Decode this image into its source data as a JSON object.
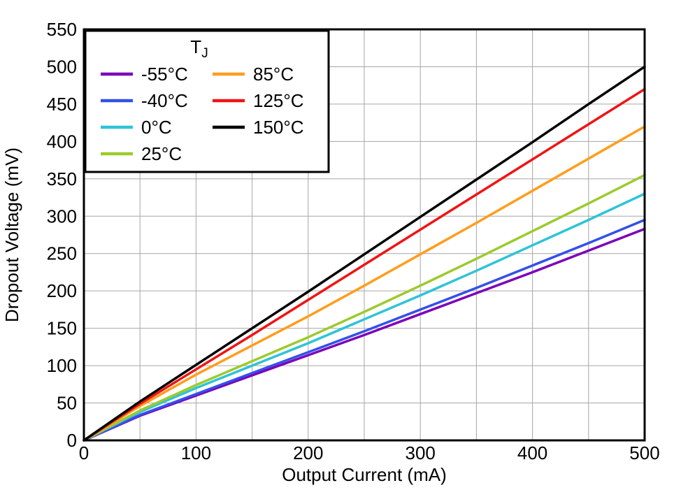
{
  "chart_data": {
    "type": "line",
    "title": "",
    "xlabel": "Output Current (mA)",
    "ylabel": "Dropout Voltage (mV)",
    "xlim": [
      0,
      500
    ],
    "ylim": [
      0,
      550
    ],
    "x_tick_step": 100,
    "y_tick_step": 50,
    "grid_step_x": 50,
    "grid_step_y": 50,
    "grid_on": true,
    "grid_color": "#a6a6a6",
    "border_color": "#000000",
    "x": [
      0,
      50,
      100,
      150,
      200,
      250,
      300,
      350,
      400,
      450,
      500
    ],
    "series": [
      {
        "name": "-55°C",
        "color": "#7c00b8",
        "values": [
          0,
          33,
          60,
          87,
          114,
          141,
          169,
          197,
          225,
          254,
          283
        ]
      },
      {
        "name": "-40°C",
        "color": "#3350e8",
        "values": [
          0,
          34,
          62,
          90,
          118,
          146,
          175,
          204,
          234,
          264,
          295
        ]
      },
      {
        "name": "0°C",
        "color": "#2ec4d6",
        "values": [
          0,
          38,
          70,
          100,
          130,
          162,
          194,
          227,
          261,
          295,
          330
        ]
      },
      {
        "name": "25°C",
        "color": "#9bcb2d",
        "values": [
          0,
          40,
          74,
          106,
          138,
          172,
          207,
          243,
          280,
          317,
          355
        ]
      },
      {
        "name": "85°C",
        "color": "#ff9d1c",
        "values": [
          0,
          46,
          88,
          127,
          166,
          207,
          249,
          291,
          334,
          377,
          420
        ]
      },
      {
        "name": "125°C",
        "color": "#f01414",
        "values": [
          0,
          49,
          95,
          141,
          188,
          235,
          282,
          329,
          376,
          423,
          470
        ]
      },
      {
        "name": "150°C",
        "color": "#000000",
        "values": [
          0,
          52,
          101,
          150,
          199,
          249,
          299,
          349,
          399,
          450,
          500
        ]
      }
    ],
    "legend": {
      "position": "top-left",
      "title_main": "T",
      "title_sub": "J",
      "columns": [
        [
          "-55°C",
          "-40°C",
          "0°C",
          "25°C"
        ],
        [
          "85°C",
          "125°C",
          "150°C"
        ]
      ]
    }
  }
}
